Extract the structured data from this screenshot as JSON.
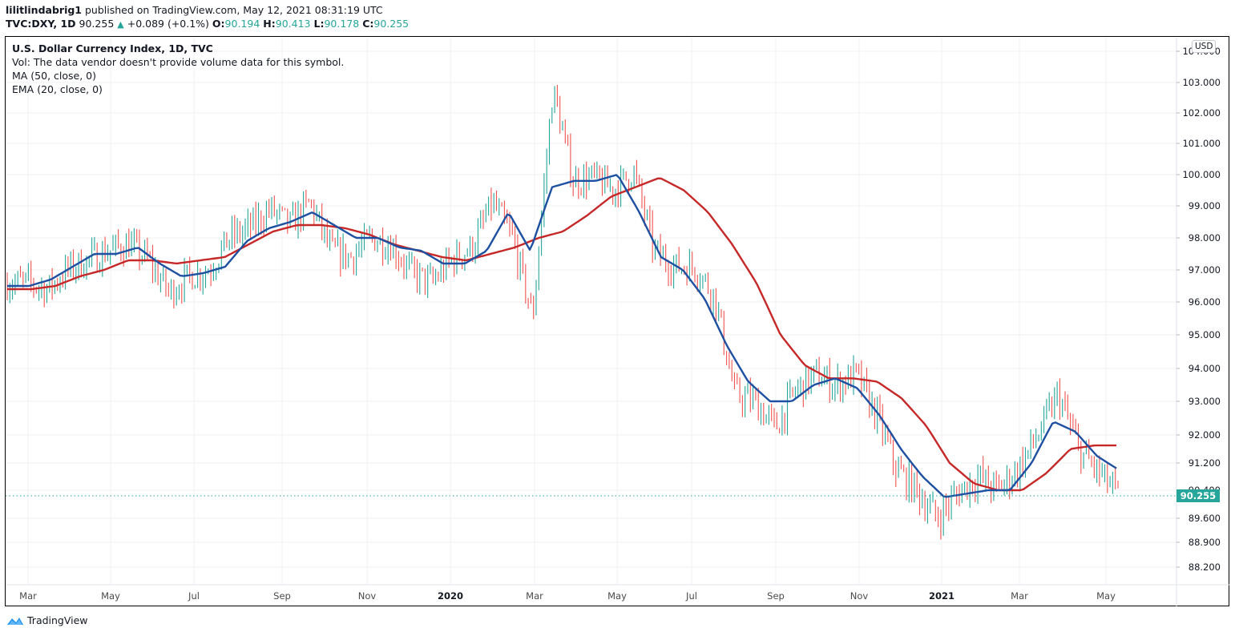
{
  "header": {
    "author": "lilitlindabrig1",
    "published_text": "published on TradingView.com, May 12, 2021 08:31:19 UTC",
    "symbol": "TVC:DXY, 1D",
    "last": "90.255",
    "change": "+0.089 (+0.1%)",
    "open_label": "O:",
    "open": "90.194",
    "high_label": "H:",
    "high": "90.413",
    "low_label": "L:",
    "low": "90.178",
    "close_label": "C:",
    "close": "90.255",
    "change_icon": "triangle-up-icon"
  },
  "legend": {
    "title": "U.S. Dollar Currency Index, 1D, TVC",
    "vol": "Vol: The data vendor doesn't provide volume data for this symbol.",
    "ma": "MA (50, close, 0)",
    "ema": "EMA (20, close, 0)"
  },
  "price_axis": {
    "currency_badge": "USD",
    "current_price": "90.255",
    "labels": [
      "104.000",
      "103.000",
      "102.000",
      "101.000",
      "100.000",
      "99.000",
      "98.000",
      "97.000",
      "96.000",
      "95.000",
      "94.000",
      "93.000",
      "92.000",
      "91.200",
      "90.400",
      "89.600",
      "88.900",
      "88.200"
    ]
  },
  "time_axis": {
    "labels": [
      "Mar",
      "May",
      "Jul",
      "Sep",
      "Nov",
      "2020",
      "Mar",
      "May",
      "Jul",
      "Sep",
      "Nov",
      "2021",
      "Mar",
      "May"
    ]
  },
  "footer": {
    "brand": "TradingView"
  },
  "colors": {
    "up": "#26a69a",
    "down": "#ef5350",
    "ema": "#1e50a2",
    "ma": "#c62828",
    "grid": "#f0f3fa"
  },
  "chart_data": {
    "type": "ohlc",
    "title": "U.S. Dollar Currency Index, 1D, TVC",
    "symbol": "TVC:DXY",
    "xlabel": "",
    "ylabel": "USD",
    "ylim": [
      87.9,
      104.2
    ],
    "y_scale": "log",
    "grid": true,
    "legend_position": "top-left",
    "x_tick_labels": [
      "Mar 2019",
      "May 2019",
      "Jul 2019",
      "Sep 2019",
      "Nov 2019",
      "2020",
      "Mar 2020",
      "May 2020",
      "Jul 2020",
      "Sep 2020",
      "Nov 2020",
      "2021",
      "Mar 2021",
      "May 2021"
    ],
    "y_tick_labels": [
      104.0,
      103.0,
      102.0,
      101.0,
      100.0,
      99.0,
      98.0,
      97.0,
      96.0,
      95.0,
      94.0,
      93.0,
      92.0,
      91.2,
      90.4,
      89.6,
      88.9,
      88.2
    ],
    "last_close": 90.255,
    "series": [
      {
        "name": "DXY close (approx, half-monthly)",
        "x": [
          "2019-02-15",
          "2019-03-01",
          "2019-03-15",
          "2019-04-01",
          "2019-04-15",
          "2019-05-01",
          "2019-05-15",
          "2019-06-01",
          "2019-06-15",
          "2019-07-01",
          "2019-07-15",
          "2019-08-01",
          "2019-08-15",
          "2019-09-01",
          "2019-09-15",
          "2019-10-01",
          "2019-10-15",
          "2019-11-01",
          "2019-11-15",
          "2019-12-01",
          "2019-12-15",
          "2020-01-01",
          "2020-01-15",
          "2020-02-01",
          "2020-02-15",
          "2020-03-01",
          "2020-03-10",
          "2020-03-20",
          "2020-04-01",
          "2020-04-15",
          "2020-05-01",
          "2020-05-15",
          "2020-06-01",
          "2020-06-15",
          "2020-07-01",
          "2020-07-15",
          "2020-08-01",
          "2020-08-15",
          "2020-09-01",
          "2020-09-15",
          "2020-10-01",
          "2020-10-15",
          "2020-11-01",
          "2020-11-15",
          "2020-12-01",
          "2020-12-15",
          "2021-01-06",
          "2021-01-15",
          "2021-02-01",
          "2021-02-15",
          "2021-03-01",
          "2021-03-15",
          "2021-04-01",
          "2021-04-15",
          "2021-05-01",
          "2021-05-11"
        ],
        "values": [
          96.6,
          96.6,
          96.4,
          97.0,
          97.3,
          97.6,
          97.8,
          97.3,
          96.3,
          96.8,
          97.0,
          98.0,
          98.3,
          98.9,
          98.4,
          99.1,
          97.6,
          97.4,
          98.0,
          97.8,
          96.9,
          96.6,
          97.3,
          97.7,
          99.1,
          98.0,
          95.5,
          102.8,
          99.8,
          99.9,
          99.5,
          100.1,
          97.6,
          97.1,
          97.1,
          96.2,
          93.2,
          93.0,
          92.2,
          93.3,
          93.8,
          93.5,
          93.8,
          92.6,
          91.0,
          90.4,
          89.6,
          90.3,
          90.8,
          90.4,
          91.0,
          92.0,
          93.2,
          91.6,
          90.9,
          90.26
        ]
      },
      {
        "name": "EMA (20, close, 0)",
        "color": "#1e50a2",
        "values": [
          96.5,
          96.5,
          96.7,
          97.1,
          97.5,
          97.5,
          97.7,
          97.2,
          96.8,
          96.9,
          97.1,
          97.9,
          98.3,
          98.5,
          98.8,
          98.4,
          98.0,
          98.0,
          97.7,
          97.6,
          97.2,
          97.2,
          97.6,
          98.8,
          97.6,
          99.6,
          99.8,
          99.8,
          100.0,
          98.8,
          97.4,
          97.0,
          96.1,
          94.7,
          93.6,
          93.0,
          93.0,
          93.5,
          93.7,
          93.4,
          92.6,
          91.6,
          90.8,
          90.2,
          90.3,
          90.4,
          90.4,
          91.2,
          92.4,
          92.1,
          91.4,
          91.0
        ]
      },
      {
        "name": "MA (50, close, 0)",
        "color": "#c62828",
        "values": [
          96.4,
          96.4,
          96.5,
          96.8,
          97.0,
          97.3,
          97.3,
          97.2,
          97.3,
          97.4,
          97.8,
          98.2,
          98.4,
          98.4,
          98.3,
          98.1,
          97.8,
          97.6,
          97.4,
          97.3,
          97.5,
          97.7,
          98.0,
          98.2,
          98.7,
          99.3,
          99.6,
          99.9,
          99.5,
          98.8,
          97.8,
          96.6,
          95.0,
          94.1,
          93.7,
          93.7,
          93.6,
          93.1,
          92.3,
          91.2,
          90.6,
          90.4,
          90.4,
          90.9,
          91.6,
          91.7,
          91.7
        ]
      }
    ]
  }
}
